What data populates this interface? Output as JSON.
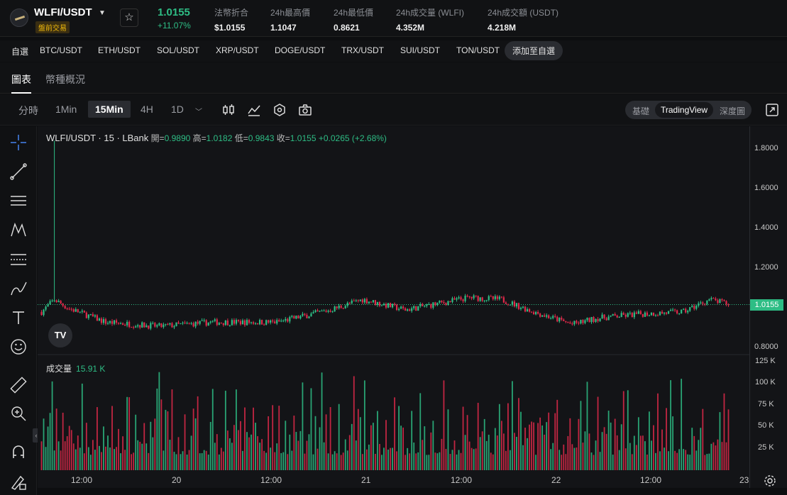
{
  "header": {
    "pair": "WLFI/USDT",
    "badge": "盤前交易",
    "price": "1.0155",
    "change": "+11.07%",
    "stats": [
      {
        "label": "法幣折合",
        "value": "$1.0155"
      },
      {
        "label": "24h最高價",
        "value": "1.1047"
      },
      {
        "label": "24h最低價",
        "value": "0.8621"
      },
      {
        "label": "24h成交量 (WLFI)",
        "value": "4.352M"
      },
      {
        "label": "24h成交額 (USDT)",
        "value": "4.218M"
      }
    ]
  },
  "quickbar": {
    "fav": "自選",
    "pairs": [
      "BTC/USDT",
      "ETH/USDT",
      "SOL/USDT",
      "XRP/USDT",
      "DOGE/USDT",
      "TRX/USDT",
      "SUI/USDT",
      "TON/USDT"
    ],
    "add": "添加至自選"
  },
  "tabs": [
    "圖表",
    "幣種概況"
  ],
  "toolbar": {
    "intervals": [
      "分時",
      "1Min",
      "15Min",
      "4H",
      "1D"
    ],
    "active_interval": "15Min",
    "views": [
      "基礎",
      "TradingView",
      "深度圖"
    ],
    "active_view": "TradingView"
  },
  "legend": {
    "title": "WLFI/USDT · 15 · LBank",
    "open_label": "開=",
    "open": "0.9890",
    "high_label": "高=",
    "high": "1.0182",
    "low_label": "低=",
    "low": "0.9843",
    "close_label": "收=",
    "close": "1.0155",
    "change": "+0.0265 (+2.68%)"
  },
  "volume": {
    "label": "成交量",
    "value": "15.91 K"
  },
  "price_axis": [
    "1.8000",
    "1.6000",
    "1.4000",
    "1.2000",
    "0.8000"
  ],
  "last_price_tag": "1.0155",
  "volume_axis": [
    "125 K",
    "100 K",
    "75 K",
    "50 K",
    "25 K"
  ],
  "time_axis": [
    "12:00",
    "20",
    "12:00",
    "21",
    "12:00",
    "22",
    "12:00",
    "23"
  ],
  "colors": {
    "up": "#2ebd85",
    "down": "#e0294a",
    "accent": "#f0b90b"
  },
  "chart_data": {
    "type": "candlestick",
    "title": "WLFI/USDT · 15 · LBank",
    "ylim": [
      0.78,
      1.88
    ],
    "volume_ylim": [
      0,
      130000
    ],
    "note_last": {
      "open": 0.989,
      "high": 1.0182,
      "low": 0.9843,
      "close": 1.0155,
      "volume": 15910
    }
  }
}
